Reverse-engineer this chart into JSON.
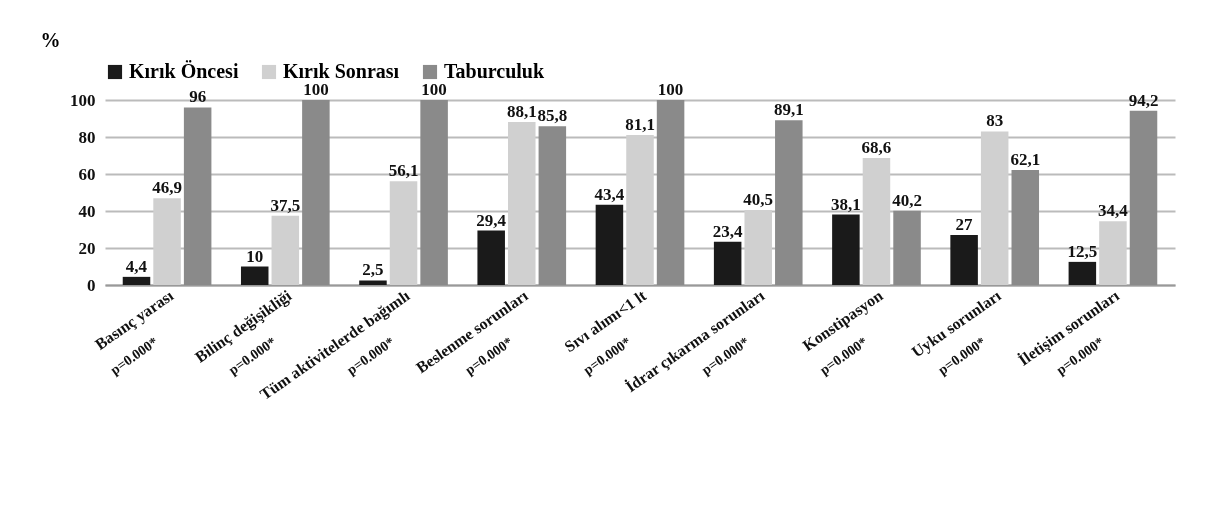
{
  "chart_data": {
    "type": "bar",
    "categories": [
      "Basınç yarası",
      "Bilinç değişikliği",
      "Tüm aktivitelerde  bağımlı",
      "Beslenme sorunları",
      "Sıvı alımı<1 lt",
      "İdrar çıkarma sorunları",
      "Konstipasyon",
      "Uyku sorunları",
      "İletişim sorunları"
    ],
    "series": [
      {
        "name": "Kırık Öncesi",
        "color": "#1a1a1a",
        "values": [
          4.4,
          10,
          2.5,
          29.4,
          43.4,
          23.4,
          38.1,
          27,
          12.5
        ],
        "value_labels": [
          "4,4",
          "10",
          "2,5",
          "29,4",
          "43,4",
          "23,4",
          "38,1",
          "27",
          "12,5"
        ]
      },
      {
        "name": "Kırık Sonrası",
        "color": "#d0d0d0",
        "values": [
          46.9,
          37.5,
          56.1,
          88.1,
          81.1,
          40.5,
          68.6,
          83,
          34.4
        ],
        "value_labels": [
          "46,9",
          "37,5",
          "56,1",
          "88,1",
          "81,1",
          "40,5",
          "68,6",
          "83",
          "34,4"
        ]
      },
      {
        "name": "Taburculuk",
        "color": "#8a8a8a",
        "values": [
          96,
          100,
          100,
          85.8,
          100,
          89.1,
          40.2,
          62.1,
          94.2
        ],
        "value_labels": [
          "96",
          "100",
          "100",
          "85,8",
          "100",
          "89,1",
          "40,2",
          "62,1",
          "94,2"
        ]
      }
    ],
    "ylabel": "%",
    "ylim": [
      0,
      100
    ],
    "yticks": [
      0,
      20,
      40,
      60,
      80,
      100
    ],
    "grid": "y",
    "legend": "top",
    "annotations": [
      "p=0.000*",
      "p=0.000*",
      "p=0.000*",
      "p=0.000*",
      "p=0.000*",
      "p=0.000*",
      "p=0.000*",
      "p=0.000*",
      "p=0.000*"
    ]
  }
}
